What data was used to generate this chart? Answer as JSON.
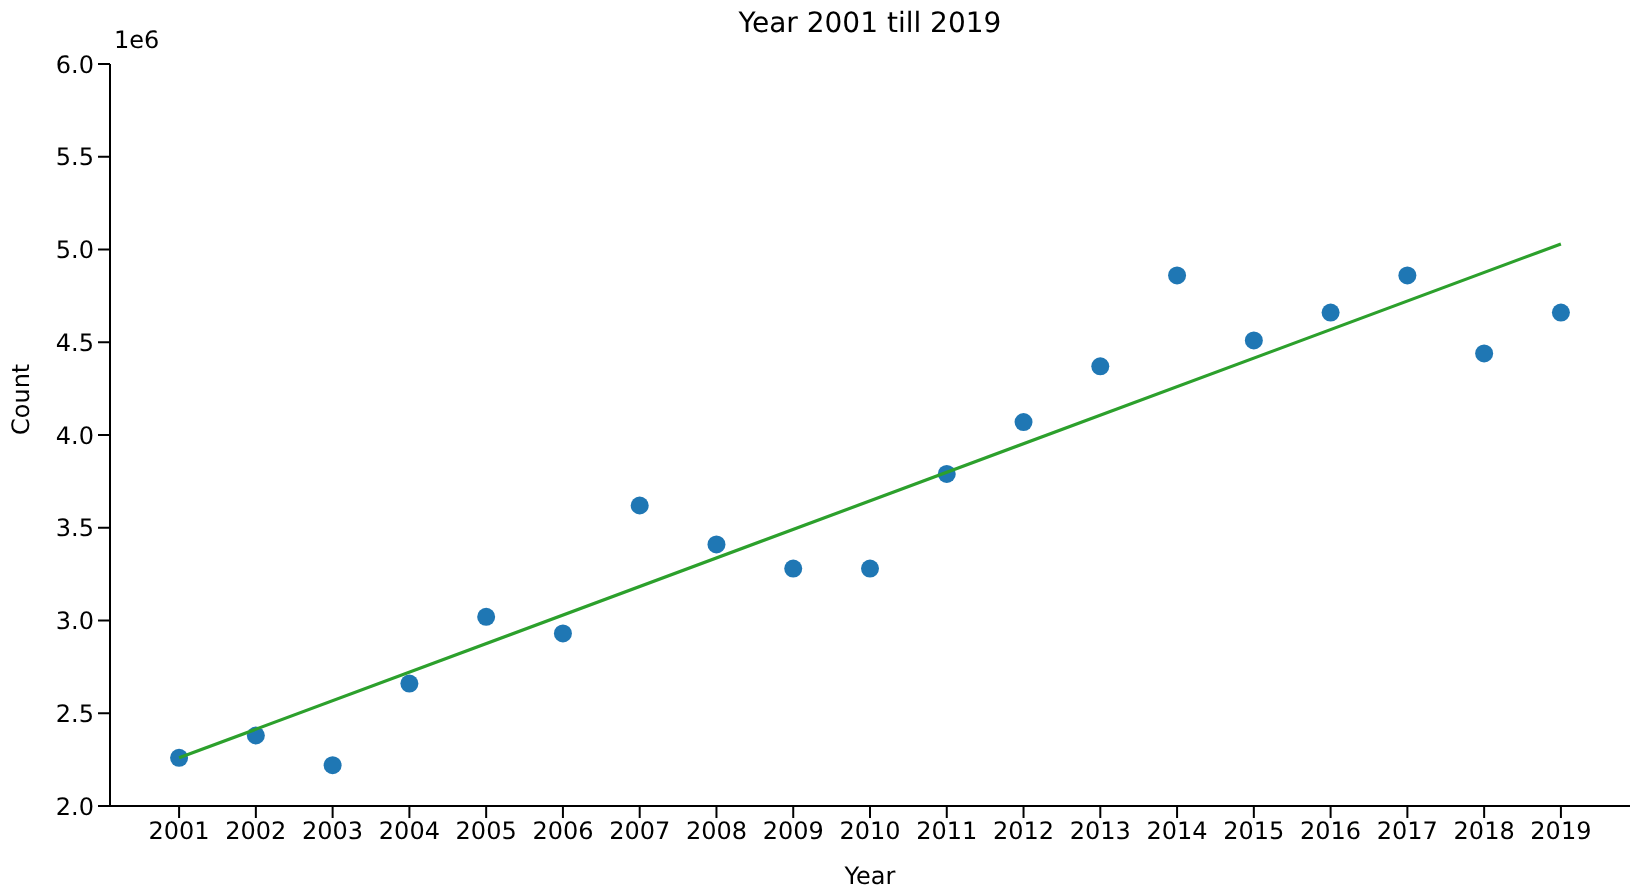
{
  "chart_data": {
    "type": "scatter",
    "title": "Year 2001 till 2019",
    "xlabel": "Year",
    "ylabel": "Count",
    "annotations": [
      "1e6"
    ],
    "x": [
      2001,
      2002,
      2003,
      2004,
      2005,
      2006,
      2007,
      2008,
      2009,
      2010,
      2011,
      2012,
      2013,
      2014,
      2015,
      2016,
      2017,
      2018,
      2019
    ],
    "series": [
      {
        "color": "#1f77b4",
        "marker": "circle",
        "values": [
          2.26,
          2.38,
          2.22,
          2.66,
          3.02,
          2.93,
          3.62,
          3.41,
          3.28,
          3.28,
          3.79,
          4.07,
          4.37,
          4.86,
          4.51,
          4.66,
          4.86,
          4.44,
          4.66
        ]
      },
      {
        "type": "line",
        "color": "#2ca02c",
        "marker": "none",
        "x": [
          2001,
          2019
        ],
        "values": [
          2.26,
          5.03
        ]
      }
    ],
    "xlim": [
      2000.1,
      2019.9
    ],
    "xticks": [
      2001,
      2002,
      2003,
      2004,
      2005,
      2006,
      2007,
      2008,
      2009,
      2010,
      2011,
      2012,
      2013,
      2014,
      2015,
      2016,
      2017,
      2018,
      2019
    ],
    "ylim": [
      2.0,
      6.0
    ],
    "yticks": [
      {
        "value": 2,
        "label": "2.0"
      },
      {
        "value": 2.5,
        "label": "2.5"
      },
      {
        "value": 3,
        "label": "3.0"
      },
      {
        "value": 3.5,
        "label": "3.5"
      },
      {
        "value": 4,
        "label": "4.0"
      },
      {
        "value": 4.5,
        "label": "4.5"
      },
      {
        "value": 5,
        "label": "5.0"
      },
      {
        "value": 5.5,
        "label": "5.5"
      },
      {
        "value": 6,
        "label": "6.0"
      }
    ],
    "grid": false,
    "legend": false
  }
}
